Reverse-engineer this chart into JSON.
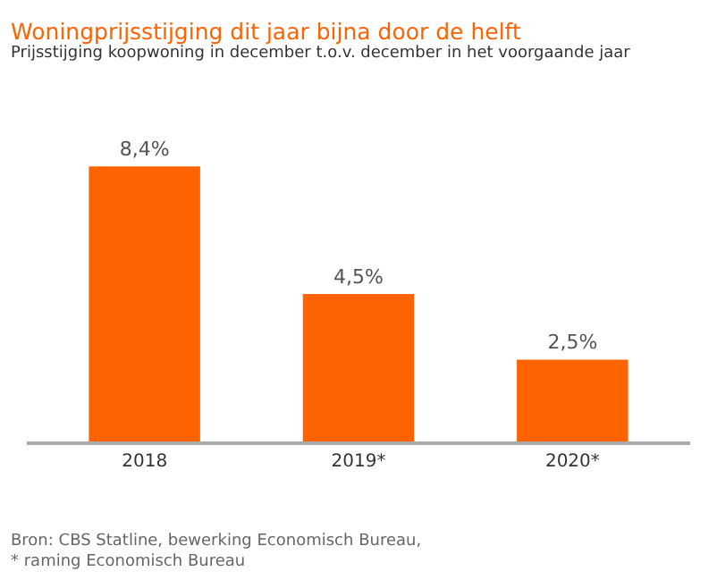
{
  "chart_data": {
    "type": "bar",
    "title": "Woningprijsstijging dit jaar bijna door de helft",
    "subtitle": "Prijsstijging koopwoning in december t.o.v. december in het voorgaande jaar",
    "categories": [
      "2018",
      "2019*",
      "2020*"
    ],
    "values": [
      8.4,
      4.5,
      2.5
    ],
    "value_labels": [
      "8,4%",
      "4,5%",
      "2,5%"
    ],
    "colors": [
      "#ff6200",
      "#ff6200",
      "#ff6200"
    ],
    "annotations": [
      "Bron: CBS Statline, bewerking Economisch Bureau,",
      "* raming Economisch Bureau"
    ],
    "legend": false
  }
}
